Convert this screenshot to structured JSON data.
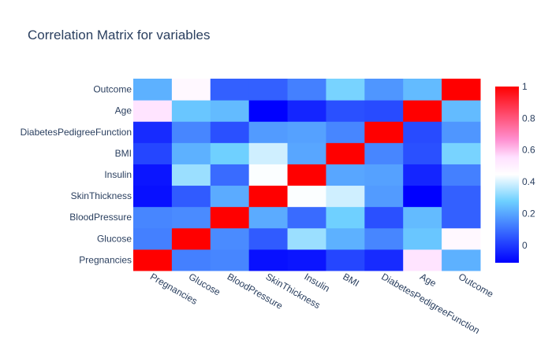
{
  "chart_data": {
    "type": "heatmap",
    "title": "Correlation Matrix for variables",
    "xlabel": "",
    "ylabel": "",
    "x": [
      "Pregnancies",
      "Glucose",
      "BloodPressure",
      "SkinThickness",
      "Insulin",
      "BMI",
      "DiabetesPedigreeFunction",
      "Age",
      "Outcome"
    ],
    "y": [
      "Pregnancies",
      "Glucose",
      "BloodPressure",
      "SkinThickness",
      "Insulin",
      "BMI",
      "DiabetesPedigreeFunction",
      "Age",
      "Outcome"
    ],
    "z": [
      [
        1.0,
        0.13,
        0.14,
        -0.08,
        -0.07,
        0.02,
        -0.03,
        0.54,
        0.22
      ],
      [
        0.13,
        1.0,
        0.15,
        0.06,
        0.33,
        0.22,
        0.14,
        0.26,
        0.47
      ],
      [
        0.14,
        0.15,
        1.0,
        0.21,
        0.09,
        0.28,
        0.04,
        0.24,
        0.07
      ],
      [
        -0.08,
        0.06,
        0.21,
        1.0,
        0.44,
        0.39,
        0.18,
        -0.11,
        0.07
      ],
      [
        -0.07,
        0.33,
        0.09,
        0.44,
        1.0,
        0.2,
        0.19,
        -0.04,
        0.13
      ],
      [
        0.02,
        0.22,
        0.28,
        0.39,
        0.2,
        1.0,
        0.14,
        0.04,
        0.29
      ],
      [
        -0.03,
        0.14,
        0.04,
        0.18,
        0.19,
        0.14,
        1.0,
        0.03,
        0.17
      ],
      [
        0.54,
        0.26,
        0.24,
        -0.11,
        -0.04,
        0.04,
        0.03,
        1.0,
        0.24
      ],
      [
        0.22,
        0.47,
        0.07,
        0.07,
        0.13,
        0.29,
        0.17,
        0.24,
        1.0
      ]
    ],
    "zlim": [
      -0.11,
      1
    ],
    "colorbar_ticks": [
      "0",
      "0.2",
      "0.4",
      "0.6",
      "0.8",
      "1"
    ],
    "colorbar_tick_values": [
      0,
      0.2,
      0.4,
      0.6,
      0.8,
      1
    ],
    "colorscale": [
      [
        0.0,
        "#0000ff"
      ],
      [
        0.35,
        "#6ed0ff"
      ],
      [
        0.5,
        "#ffffff"
      ],
      [
        0.6,
        "#ffe0ff"
      ],
      [
        0.7,
        "#ff8fd0"
      ],
      [
        1.0,
        "#ff0000"
      ]
    ],
    "grid": false,
    "legend": "colorbar-right"
  },
  "colors": {
    "text": "#2a3f5f",
    "background": "#ffffff"
  }
}
